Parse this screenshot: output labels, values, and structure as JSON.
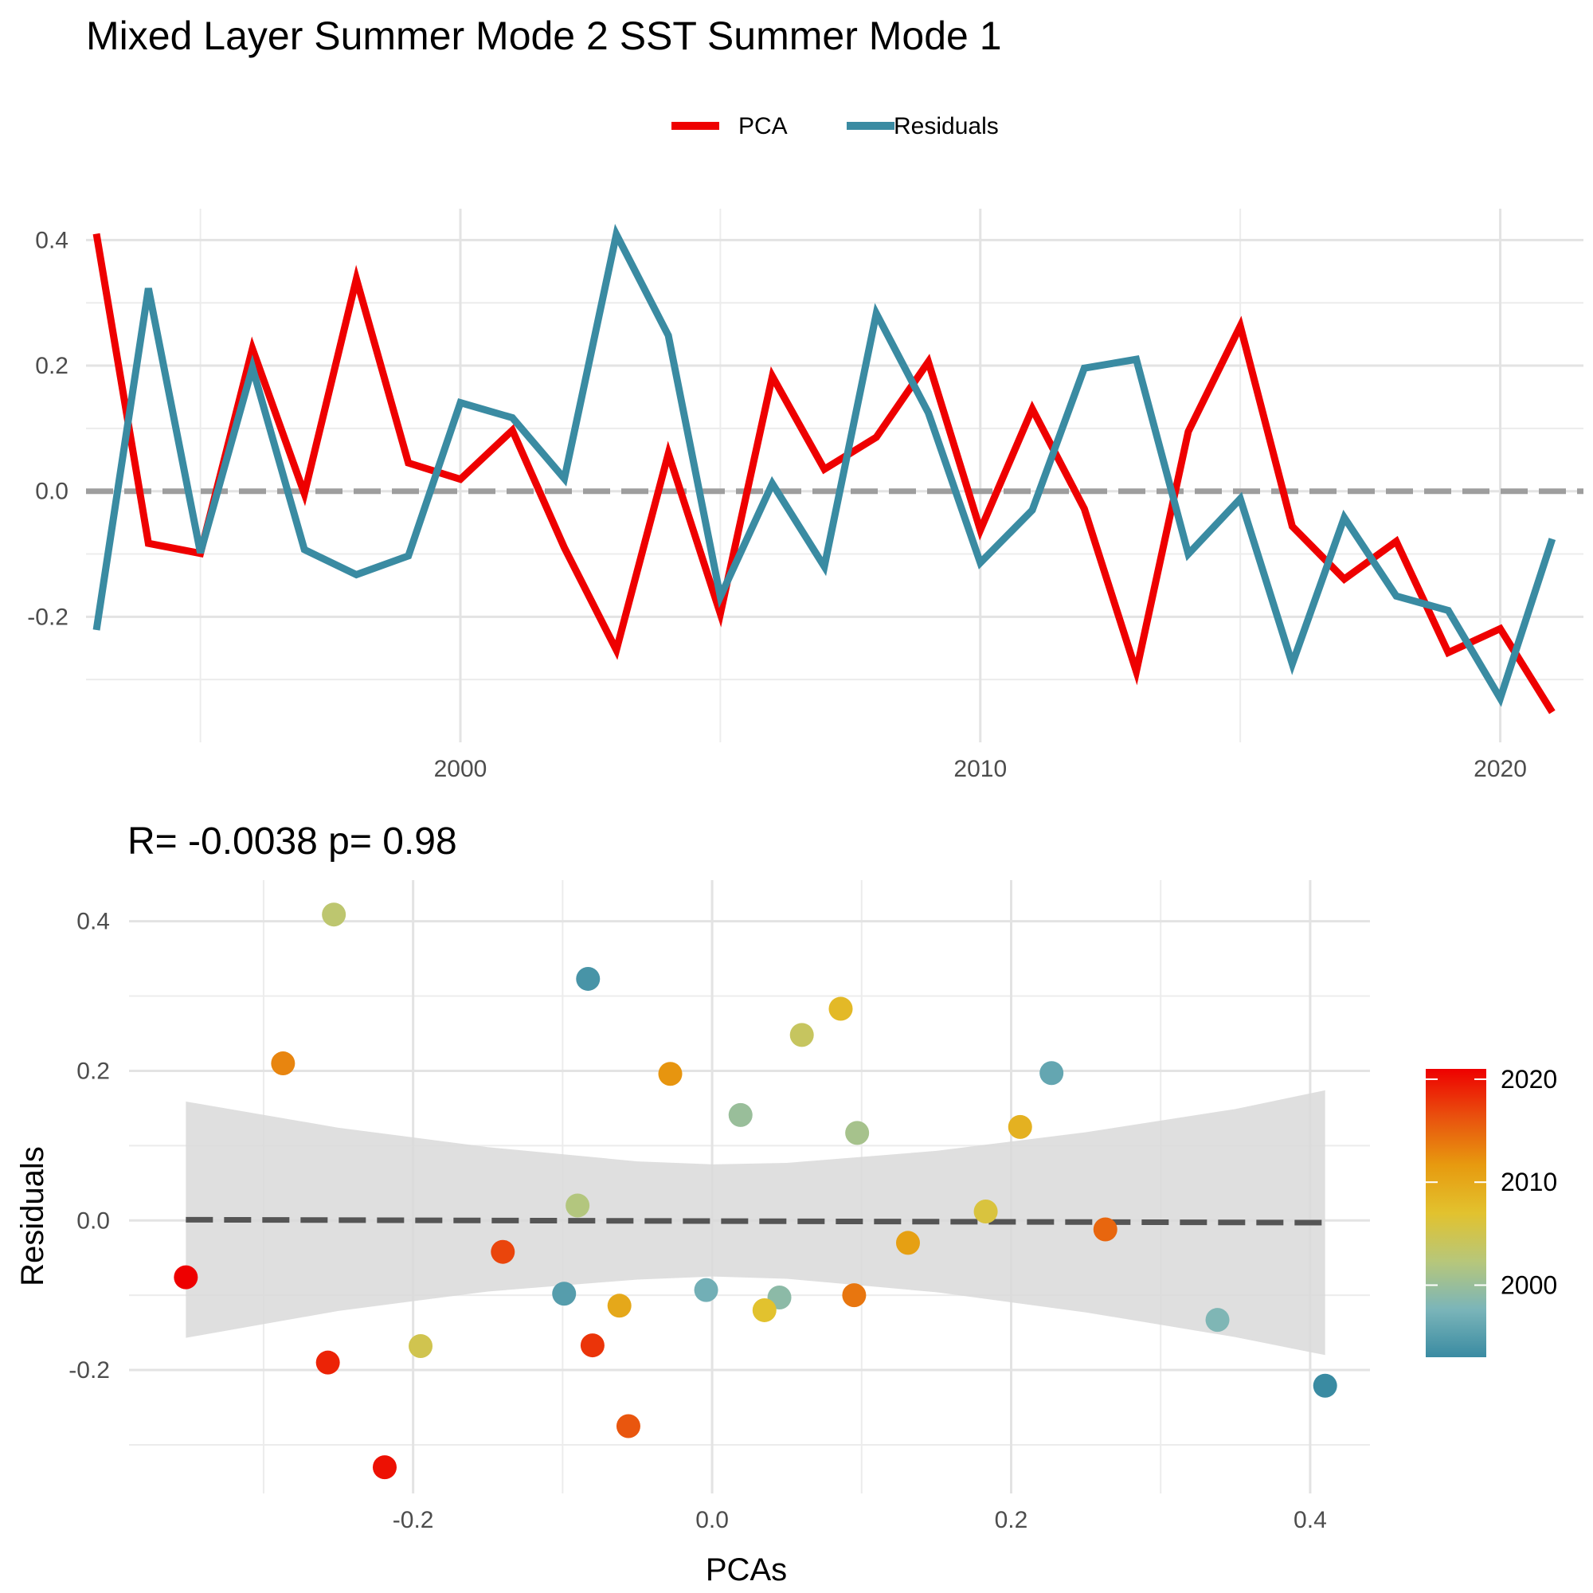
{
  "title": "Mixed Layer Summer Mode 2 SST Summer Mode 1",
  "legend": {
    "items": [
      {
        "label": "PCA",
        "color": "#EE0000"
      },
      {
        "label": "Residuals",
        "color": "#3A8BA2"
      }
    ]
  },
  "chart_data": [
    {
      "type": "line",
      "x": [
        1993,
        1994,
        1995,
        1996,
        1997,
        1998,
        1999,
        2000,
        2001,
        2002,
        2003,
        2004,
        2005,
        2006,
        2007,
        2008,
        2009,
        2010,
        2011,
        2012,
        2013,
        2014,
        2015,
        2016,
        2017,
        2018,
        2019,
        2020,
        2021
      ],
      "series": [
        {
          "name": "PCA",
          "color": "#EE0000",
          "values": [
            0.41,
            -0.083,
            -0.099,
            0.227,
            -0.004,
            0.338,
            0.045,
            0.019,
            0.097,
            -0.09,
            -0.253,
            0.06,
            -0.195,
            0.183,
            0.035,
            0.086,
            0.206,
            -0.062,
            0.131,
            -0.028,
            -0.287,
            0.095,
            0.263,
            -0.056,
            -0.14,
            -0.08,
            -0.257,
            -0.219,
            -0.352
          ]
        },
        {
          "name": "Residuals",
          "color": "#3A8BA2",
          "values": [
            -0.221,
            0.323,
            -0.098,
            0.197,
            -0.093,
            -0.133,
            -0.103,
            0.141,
            0.117,
            0.02,
            0.409,
            0.248,
            -0.168,
            0.012,
            -0.12,
            0.283,
            0.125,
            -0.114,
            -0.03,
            0.196,
            0.21,
            -0.1,
            -0.012,
            -0.275,
            -0.042,
            -0.167,
            -0.19,
            -0.33,
            -0.076
          ]
        }
      ],
      "xlim": [
        1992.8,
        2021.6
      ],
      "ylim": [
        -0.4,
        0.45
      ],
      "x_ticks": [
        2000,
        2010,
        2020
      ],
      "y_ticks": [
        -0.2,
        0.0,
        0.2,
        0.4
      ],
      "x_tick_labels": [
        "2000",
        "2010",
        "2020"
      ],
      "y_tick_labels": [
        "-0.2",
        "0.0",
        "0.2",
        "0.4"
      ],
      "reference_line": 0,
      "grid": true,
      "legend_position": "top",
      "xlabel": "",
      "ylabel": ""
    },
    {
      "type": "scatter",
      "subtitle": "R= -0.0038  p= 0.98",
      "xlabel": "PCAs",
      "ylabel": "Residuals",
      "xlim": [
        -0.39,
        0.44
      ],
      "ylim": [
        -0.365,
        0.455
      ],
      "x_ticks": [
        -0.2,
        0.0,
        0.2,
        0.4
      ],
      "y_ticks": [
        -0.2,
        0.0,
        0.2,
        0.4
      ],
      "x_tick_labels": [
        "-0.2",
        "0.0",
        "0.2",
        "0.4"
      ],
      "y_tick_labels": [
        "-0.2",
        "0.0",
        "0.2",
        "0.4"
      ],
      "grid": true,
      "fit_line": {
        "x": [
          -0.352,
          0.41
        ],
        "y": [
          0.001,
          -0.003
        ]
      },
      "confidence_band": {
        "x": [
          -0.352,
          -0.25,
          -0.15,
          -0.05,
          0.0,
          0.05,
          0.15,
          0.25,
          0.35,
          0.41
        ],
        "upper": [
          0.159,
          0.124,
          0.098,
          0.079,
          0.075,
          0.077,
          0.093,
          0.118,
          0.149,
          0.174
        ],
        "lower": [
          -0.157,
          -0.121,
          -0.095,
          -0.079,
          -0.075,
          -0.078,
          -0.096,
          -0.123,
          -0.156,
          -0.18
        ]
      },
      "colorbar": {
        "labels": [
          "2020",
          "2010",
          "2000"
        ],
        "values": [
          2020,
          2010,
          2000
        ],
        "range": [
          1993,
          2021
        ],
        "colors": [
          "#3A8BA2",
          "#7BB5B9",
          "#B7C77A",
          "#E2C22E",
          "#E79A0F",
          "#E9510E",
          "#EE0000"
        ],
        "legend_position": "right"
      },
      "points": [
        {
          "x": 0.41,
          "y": -0.221,
          "year": 1993
        },
        {
          "x": -0.083,
          "y": 0.323,
          "year": 1994
        },
        {
          "x": -0.099,
          "y": -0.098,
          "year": 1995
        },
        {
          "x": 0.227,
          "y": 0.197,
          "year": 1996
        },
        {
          "x": -0.004,
          "y": -0.093,
          "year": 1997
        },
        {
          "x": 0.338,
          "y": -0.133,
          "year": 1998
        },
        {
          "x": 0.045,
          "y": -0.103,
          "year": 1999
        },
        {
          "x": 0.019,
          "y": 0.141,
          "year": 2000
        },
        {
          "x": 0.097,
          "y": 0.117,
          "year": 2001
        },
        {
          "x": -0.09,
          "y": 0.02,
          "year": 2002
        },
        {
          "x": -0.253,
          "y": 0.409,
          "year": 2003
        },
        {
          "x": 0.06,
          "y": 0.248,
          "year": 2004
        },
        {
          "x": -0.195,
          "y": -0.168,
          "year": 2005
        },
        {
          "x": 0.183,
          "y": 0.012,
          "year": 2006
        },
        {
          "x": 0.035,
          "y": -0.12,
          "year": 2007
        },
        {
          "x": 0.086,
          "y": 0.283,
          "year": 2008
        },
        {
          "x": 0.206,
          "y": 0.125,
          "year": 2009
        },
        {
          "x": -0.062,
          "y": -0.114,
          "year": 2010
        },
        {
          "x": 0.131,
          "y": -0.03,
          "year": 2011
        },
        {
          "x": -0.028,
          "y": 0.196,
          "year": 2012
        },
        {
          "x": -0.287,
          "y": 0.21,
          "year": 2013
        },
        {
          "x": 0.095,
          "y": -0.1,
          "year": 2014
        },
        {
          "x": 0.263,
          "y": -0.012,
          "year": 2015
        },
        {
          "x": -0.056,
          "y": -0.275,
          "year": 2016
        },
        {
          "x": -0.14,
          "y": -0.042,
          "year": 2017
        },
        {
          "x": -0.08,
          "y": -0.167,
          "year": 2018
        },
        {
          "x": -0.257,
          "y": -0.19,
          "year": 2019
        },
        {
          "x": -0.219,
          "y": -0.33,
          "year": 2020
        },
        {
          "x": -0.352,
          "y": -0.076,
          "year": 2021
        }
      ]
    }
  ]
}
